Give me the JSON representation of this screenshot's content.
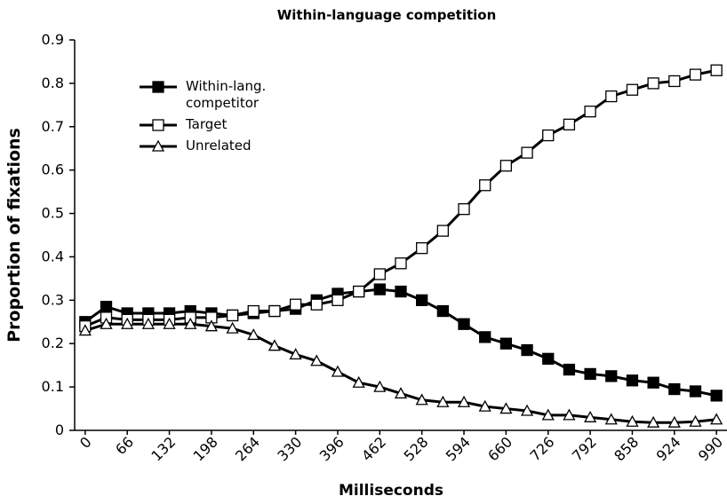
{
  "chart_data": {
    "type": "line",
    "title": "Within-language competition",
    "x_label": "Milliseconds",
    "y_label": "Proportion of fixations",
    "x": [
      0,
      33,
      66,
      99,
      132,
      165,
      198,
      231,
      264,
      297,
      330,
      363,
      396,
      429,
      462,
      495,
      528,
      561,
      594,
      627,
      660,
      693,
      726,
      759,
      792,
      825,
      858,
      891,
      924,
      957,
      990
    ],
    "xlim": [
      -16.5,
      1006.5
    ],
    "xticks": [
      0,
      66,
      132,
      198,
      264,
      330,
      396,
      462,
      528,
      594,
      660,
      726,
      792,
      858,
      924,
      990
    ],
    "ylim": [
      0,
      0.9
    ],
    "yticks": [
      0,
      0.1,
      0.2,
      0.3,
      0.4,
      0.5,
      0.6,
      0.7,
      0.8,
      0.9
    ],
    "legend": "upper left",
    "series": [
      {
        "name": "Within-lang. competitor",
        "color": "#000000",
        "marker": "filled-square",
        "values": [
          0.25,
          0.285,
          0.27,
          0.27,
          0.27,
          0.275,
          0.27,
          0.265,
          0.27,
          0.275,
          0.28,
          0.3,
          0.315,
          0.32,
          0.325,
          0.32,
          0.3,
          0.275,
          0.245,
          0.215,
          0.2,
          0.185,
          0.165,
          0.14,
          0.13,
          0.125,
          0.115,
          0.11,
          0.095,
          0.09,
          0.08
        ]
      },
      {
        "name": "Target",
        "color": "#000000",
        "marker": "open-square",
        "values": [
          0.24,
          0.26,
          0.255,
          0.255,
          0.255,
          0.26,
          0.26,
          0.265,
          0.275,
          0.275,
          0.29,
          0.29,
          0.3,
          0.32,
          0.36,
          0.385,
          0.42,
          0.46,
          0.51,
          0.565,
          0.61,
          0.64,
          0.68,
          0.705,
          0.735,
          0.77,
          0.785,
          0.8,
          0.805,
          0.82,
          0.83
        ]
      },
      {
        "name": "Unrelated",
        "color": "#000000",
        "marker": "open-triangle",
        "values": [
          0.23,
          0.245,
          0.245,
          0.245,
          0.245,
          0.245,
          0.24,
          0.235,
          0.22,
          0.195,
          0.175,
          0.16,
          0.135,
          0.11,
          0.1,
          0.085,
          0.07,
          0.065,
          0.065,
          0.055,
          0.05,
          0.045,
          0.035,
          0.035,
          0.03,
          0.025,
          0.02,
          0.018,
          0.018,
          0.02,
          0.025
        ]
      }
    ]
  }
}
